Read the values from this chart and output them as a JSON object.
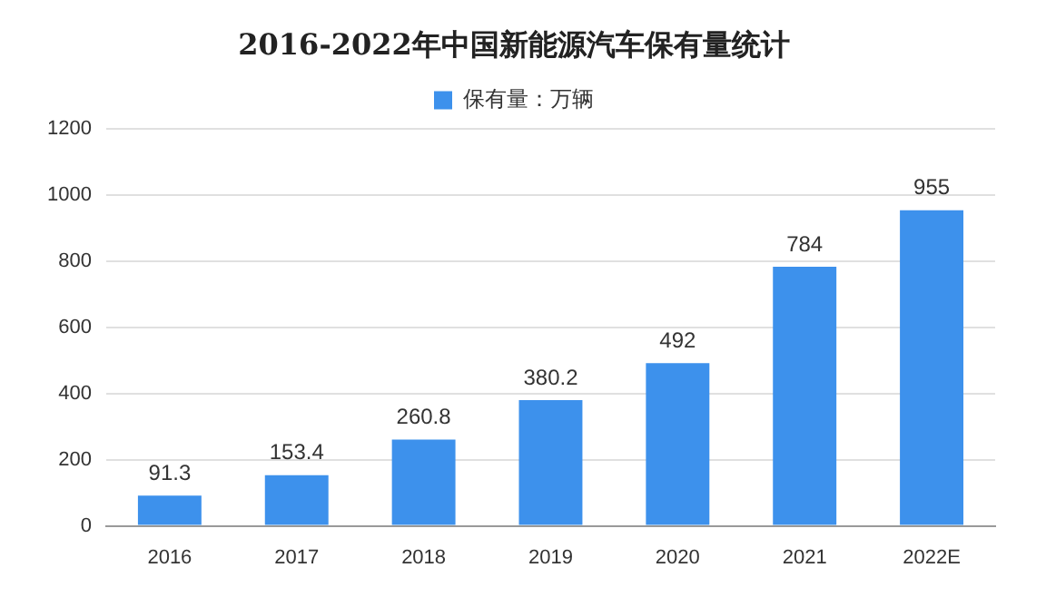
{
  "chart_data": {
    "type": "bar",
    "title": "2016-2022年中国新能源汽车保有量统计",
    "categories": [
      "2016",
      "2017",
      "2018",
      "2019",
      "2020",
      "2021",
      "2022E"
    ],
    "series": [
      {
        "name": "保有量：万辆",
        "color": "#3d91ec",
        "values": [
          91.3,
          153.4,
          260.8,
          380.2,
          492,
          784,
          955
        ]
      }
    ],
    "ylim": [
      0,
      1200
    ],
    "yticks": [
      0,
      200,
      400,
      600,
      800,
      1000,
      1200
    ],
    "grid": "y",
    "legend": "top",
    "data_labels": true
  }
}
